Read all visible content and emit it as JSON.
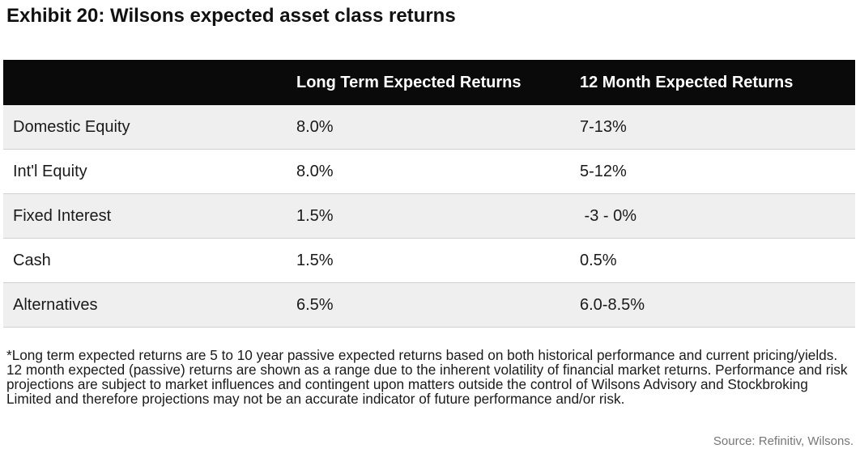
{
  "title": "Exhibit 20: Wilsons expected asset class returns",
  "table": {
    "headers": [
      "",
      "Long Term Expected Returns",
      "12 Month Expected Returns"
    ],
    "rows": [
      [
        "Domestic Equity",
        "8.0%",
        "7-13%"
      ],
      [
        "Int'l Equity",
        "8.0%",
        "5-12%"
      ],
      [
        "Fixed Interest",
        "1.5%",
        " -3 - 0%"
      ],
      [
        "Cash",
        "1.5%",
        "0.5%"
      ],
      [
        "Alternatives",
        "6.5%",
        "6.0-8.5%"
      ]
    ]
  },
  "footnote": "*Long term expected returns are 5 to 10 year passive expected returns based on both historical performance and current pricing/yields. 12 month expected (passive) returns are shown as a range due to the inherent volatility of financial market returns. Performance and risk projections are subject to market influences and contingent upon matters outside the control of Wilsons Advisory and Stockbroking Limited and therefore projections may not be an accurate indicator of future performance and/or risk.",
  "source": "Source: Refinitiv, Wilsons.",
  "colors": {
    "header_bg": "#0a0a0a",
    "header_text": "#ffffff",
    "row_shade": "#efefef",
    "source_text": "#777777"
  }
}
